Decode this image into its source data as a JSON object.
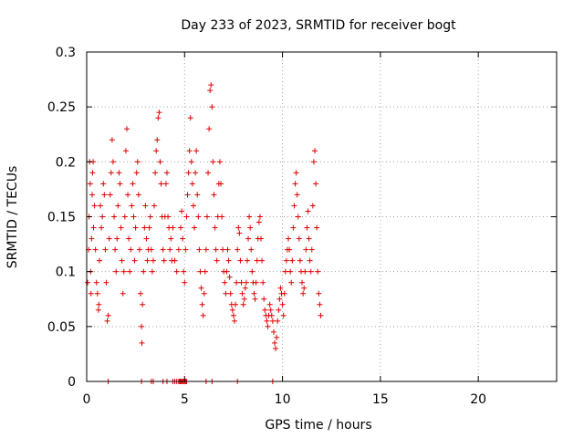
{
  "chart_data": {
    "type": "scatter",
    "title": "Day 233 of 2023, SRMTID for receiver bogt",
    "xlabel": "GPS time / hours",
    "ylabel": "SRMTID / TECUs",
    "xlim": [
      0,
      24
    ],
    "ylim": [
      0,
      0.3
    ],
    "xticks": [
      0,
      5,
      10,
      15,
      20
    ],
    "xtick_labels": [
      "0",
      "5",
      "10",
      "15",
      "20"
    ],
    "yticks": [
      0,
      0.05,
      0.1,
      0.15,
      0.2,
      0.25,
      0.3
    ],
    "ytick_labels": [
      "0",
      "0.05",
      "0.1",
      "0.15",
      "0.2",
      "0.25",
      "0.3"
    ],
    "grid": true,
    "marker": "+",
    "color": "#e00000",
    "series": [
      {
        "name": "SRMTID",
        "points": [
          [
            0.05,
            0.09
          ],
          [
            0.1,
            0.12
          ],
          [
            0.12,
            0.15
          ],
          [
            0.15,
            0.2
          ],
          [
            0.18,
            0.18
          ],
          [
            0.2,
            0.1
          ],
          [
            0.22,
            0.08
          ],
          [
            0.25,
            0.13
          ],
          [
            0.28,
            0.17
          ],
          [
            0.3,
            0.19
          ],
          [
            0.33,
            0.2
          ],
          [
            0.35,
            0.14
          ],
          [
            0.4,
            0.16
          ],
          [
            0.45,
            0.12
          ],
          [
            0.5,
            0.09
          ],
          [
            0.55,
            0.08
          ],
          [
            0.6,
            0.065
          ],
          [
            0.62,
            0.07
          ],
          [
            0.65,
            0.11
          ],
          [
            0.7,
            0.16
          ],
          [
            0.75,
            0.14
          ],
          [
            0.8,
            0.15
          ],
          [
            0.85,
            0.18
          ],
          [
            0.9,
            0.17
          ],
          [
            0.95,
            0.12
          ],
          [
            1.0,
            0.09
          ],
          [
            1.05,
            0.055
          ],
          [
            1.1,
            0.06
          ],
          [
            1.15,
            0.13
          ],
          [
            1.2,
            0.17
          ],
          [
            1.25,
            0.19
          ],
          [
            1.3,
            0.22
          ],
          [
            1.35,
            0.2
          ],
          [
            1.4,
            0.15
          ],
          [
            1.45,
            0.12
          ],
          [
            1.5,
            0.1
          ],
          [
            1.55,
            0.13
          ],
          [
            1.6,
            0.16
          ],
          [
            1.65,
            0.19
          ],
          [
            1.7,
            0.18
          ],
          [
            1.75,
            0.14
          ],
          [
            1.8,
            0.11
          ],
          [
            1.85,
            0.08
          ],
          [
            1.9,
            0.1
          ],
          [
            1.95,
            0.15
          ],
          [
            2.0,
            0.21
          ],
          [
            2.05,
            0.23
          ],
          [
            2.1,
            0.17
          ],
          [
            2.15,
            0.13
          ],
          [
            2.2,
            0.1
          ],
          [
            2.25,
            0.12
          ],
          [
            2.3,
            0.16
          ],
          [
            2.35,
            0.18
          ],
          [
            2.4,
            0.15
          ],
          [
            2.45,
            0.11
          ],
          [
            2.5,
            0.14
          ],
          [
            2.55,
            0.19
          ],
          [
            2.6,
            0.2
          ],
          [
            2.65,
            0.17
          ],
          [
            2.7,
            0.12
          ],
          [
            2.75,
            0.08
          ],
          [
            2.8,
            0.05
          ],
          [
            2.82,
            0.035
          ],
          [
            2.85,
            0.07
          ],
          [
            2.9,
            0.1
          ],
          [
            2.95,
            0.14
          ],
          [
            3.0,
            0.16
          ],
          [
            3.05,
            0.13
          ],
          [
            3.1,
            0.11
          ],
          [
            3.15,
            0.12
          ],
          [
            3.2,
            0.14
          ],
          [
            3.25,
            0.15
          ],
          [
            3.3,
            0.12
          ],
          [
            3.35,
            0.1
          ],
          [
            3.4,
            0.11
          ],
          [
            3.45,
            0.16
          ],
          [
            3.5,
            0.19
          ],
          [
            3.55,
            0.21
          ],
          [
            3.6,
            0.22
          ],
          [
            3.65,
            0.24
          ],
          [
            3.7,
            0.245
          ],
          [
            3.75,
            0.2
          ],
          [
            3.8,
            0.18
          ],
          [
            3.85,
            0.15
          ],
          [
            3.9,
            0.12
          ],
          [
            3.95,
            0.11
          ],
          [
            4.0,
            0.15
          ],
          [
            4.05,
            0.18
          ],
          [
            4.1,
            0.19
          ],
          [
            4.15,
            0.15
          ],
          [
            4.2,
            0.14
          ],
          [
            4.25,
            0.12
          ],
          [
            4.3,
            0.13
          ],
          [
            4.35,
            0.11
          ],
          [
            4.4,
            0.14
          ],
          [
            4.5,
            0.11
          ],
          [
            4.6,
            0.1
          ],
          [
            4.7,
            0.12
          ],
          [
            4.8,
            0.14
          ],
          [
            4.85,
            0.155
          ],
          [
            4.9,
            0.13
          ],
          [
            4.95,
            0.1
          ],
          [
            5.0,
            0.09
          ],
          [
            5.05,
            0.12
          ],
          [
            5.1,
            0.15
          ],
          [
            5.15,
            0.17
          ],
          [
            5.2,
            0.19
          ],
          [
            5.25,
            0.21
          ],
          [
            5.3,
            0.24
          ],
          [
            5.35,
            0.2
          ],
          [
            5.4,
            0.18
          ],
          [
            5.45,
            0.16
          ],
          [
            5.5,
            0.14
          ],
          [
            5.55,
            0.19
          ],
          [
            5.6,
            0.21
          ],
          [
            5.65,
            0.17
          ],
          [
            5.7,
            0.15
          ],
          [
            5.75,
            0.12
          ],
          [
            5.8,
            0.1
          ],
          [
            5.85,
            0.085
          ],
          [
            5.9,
            0.07
          ],
          [
            5.95,
            0.06
          ],
          [
            6.0,
            0.08
          ],
          [
            6.05,
            0.1
          ],
          [
            6.1,
            0.12
          ],
          [
            6.15,
            0.15
          ],
          [
            6.2,
            0.19
          ],
          [
            6.25,
            0.23
          ],
          [
            6.3,
            0.265
          ],
          [
            6.35,
            0.27
          ],
          [
            6.4,
            0.25
          ],
          [
            6.45,
            0.2
          ],
          [
            6.5,
            0.17
          ],
          [
            6.55,
            0.14
          ],
          [
            6.6,
            0.12
          ],
          [
            6.65,
            0.11
          ],
          [
            6.7,
            0.15
          ],
          [
            6.75,
            0.18
          ],
          [
            6.8,
            0.2
          ],
          [
            6.85,
            0.18
          ],
          [
            6.9,
            0.15
          ],
          [
            6.95,
            0.12
          ],
          [
            7.0,
            0.1
          ],
          [
            7.05,
            0.09
          ],
          [
            7.1,
            0.08
          ],
          [
            7.15,
            0.1
          ],
          [
            7.2,
            0.12
          ],
          [
            7.25,
            0.11
          ],
          [
            7.3,
            0.095
          ],
          [
            7.35,
            0.08
          ],
          [
            7.4,
            0.07
          ],
          [
            7.45,
            0.065
          ],
          [
            7.5,
            0.06
          ],
          [
            7.55,
            0.055
          ],
          [
            7.6,
            0.07
          ],
          [
            7.65,
            0.09
          ],
          [
            7.7,
            0.12
          ],
          [
            7.75,
            0.14
          ],
          [
            7.8,
            0.135
          ],
          [
            7.85,
            0.11
          ],
          [
            7.9,
            0.09
          ],
          [
            7.95,
            0.08
          ],
          [
            8.0,
            0.07
          ],
          [
            8.05,
            0.075
          ],
          [
            8.1,
            0.085
          ],
          [
            8.15,
            0.09
          ],
          [
            8.2,
            0.11
          ],
          [
            8.25,
            0.13
          ],
          [
            8.3,
            0.15
          ],
          [
            8.35,
            0.14
          ],
          [
            8.4,
            0.12
          ],
          [
            8.45,
            0.1
          ],
          [
            8.5,
            0.09
          ],
          [
            8.55,
            0.08
          ],
          [
            8.6,
            0.075
          ],
          [
            8.65,
            0.09
          ],
          [
            8.7,
            0.11
          ],
          [
            8.75,
            0.13
          ],
          [
            8.8,
            0.145
          ],
          [
            8.85,
            0.15
          ],
          [
            8.9,
            0.13
          ],
          [
            8.95,
            0.11
          ],
          [
            9.0,
            0.09
          ],
          [
            9.05,
            0.075
          ],
          [
            9.1,
            0.065
          ],
          [
            9.15,
            0.06
          ],
          [
            9.2,
            0.055
          ],
          [
            9.25,
            0.05
          ],
          [
            9.3,
            0.06
          ],
          [
            9.35,
            0.07
          ],
          [
            9.4,
            0.065
          ],
          [
            9.45,
            0.06
          ],
          [
            9.5,
            0.055
          ],
          [
            9.55,
            0.045
          ],
          [
            9.6,
            0.035
          ],
          [
            9.65,
            0.03
          ],
          [
            9.7,
            0.04
          ],
          [
            9.75,
            0.055
          ],
          [
            9.8,
            0.065
          ],
          [
            9.85,
            0.075
          ],
          [
            9.9,
            0.085
          ],
          [
            9.95,
            0.08
          ],
          [
            10.0,
            0.07
          ],
          [
            10.05,
            0.06
          ],
          [
            10.1,
            0.08
          ],
          [
            10.15,
            0.1
          ],
          [
            10.2,
            0.11
          ],
          [
            10.25,
            0.12
          ],
          [
            10.3,
            0.13
          ],
          [
            10.35,
            0.12
          ],
          [
            10.4,
            0.1
          ],
          [
            10.45,
            0.09
          ],
          [
            10.5,
            0.11
          ],
          [
            10.55,
            0.14
          ],
          [
            10.6,
            0.16
          ],
          [
            10.65,
            0.18
          ],
          [
            10.7,
            0.19
          ],
          [
            10.75,
            0.17
          ],
          [
            10.8,
            0.15
          ],
          [
            10.85,
            0.13
          ],
          [
            10.9,
            0.11
          ],
          [
            10.95,
            0.1
          ],
          [
            11.0,
            0.09
          ],
          [
            11.05,
            0.08
          ],
          [
            11.1,
            0.085
          ],
          [
            11.15,
            0.1
          ],
          [
            11.2,
            0.12
          ],
          [
            11.25,
            0.14
          ],
          [
            11.3,
            0.155
          ],
          [
            11.35,
            0.13
          ],
          [
            11.4,
            0.11
          ],
          [
            11.45,
            0.1
          ],
          [
            11.5,
            0.12
          ],
          [
            11.55,
            0.16
          ],
          [
            11.6,
            0.2
          ],
          [
            11.65,
            0.21
          ],
          [
            11.7,
            0.18
          ],
          [
            11.75,
            0.14
          ],
          [
            11.8,
            0.1
          ],
          [
            11.85,
            0.08
          ],
          [
            11.9,
            0.07
          ],
          [
            11.95,
            0.06
          ],
          [
            1.1,
            0.0
          ],
          [
            2.8,
            0.0
          ],
          [
            3.3,
            0.0
          ],
          [
            3.4,
            0.0
          ],
          [
            3.9,
            0.0
          ],
          [
            4.1,
            0.0
          ],
          [
            4.4,
            0.0
          ],
          [
            4.5,
            0.0
          ],
          [
            4.6,
            0.0
          ],
          [
            4.7,
            0.0
          ],
          [
            4.75,
            0.0
          ],
          [
            4.8,
            0.0
          ],
          [
            4.85,
            0.0
          ],
          [
            4.9,
            0.0
          ],
          [
            4.95,
            0.0
          ],
          [
            5.0,
            0.0
          ],
          [
            5.05,
            0.0
          ],
          [
            5.1,
            0.0
          ],
          [
            6.1,
            0.0
          ],
          [
            6.4,
            0.0
          ],
          [
            7.7,
            0.0
          ],
          [
            9.5,
            0.0
          ]
        ]
      }
    ]
  }
}
